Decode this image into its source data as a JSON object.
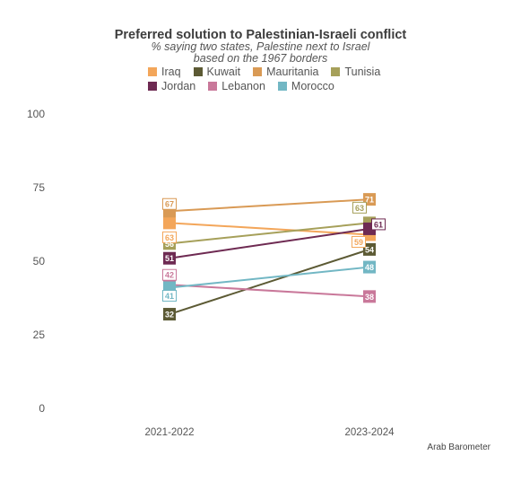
{
  "chart_data": {
    "type": "line",
    "title": "Preferred solution to Palestinian-Israeli conflict",
    "subtitle_lines": [
      "% saying two states, Palestine next to Israel",
      "based on the 1967 borders"
    ],
    "categories": [
      "2021-2022",
      "2023-2024"
    ],
    "ylim": [
      0,
      100
    ],
    "yticks": [
      "0",
      "25",
      "50",
      "75",
      "100"
    ],
    "xlabel": "",
    "ylabel": "",
    "grid": false,
    "legend_position": "top",
    "source": "Arab Barometer",
    "series": [
      {
        "name": "Iraq",
        "color": "#f3a65a",
        "values": [
          63,
          59
        ]
      },
      {
        "name": "Kuwait",
        "color": "#5c5a34",
        "values": [
          32,
          54
        ]
      },
      {
        "name": "Mauritania",
        "color": "#d99a55",
        "values": [
          67,
          71
        ]
      },
      {
        "name": "Tunisia",
        "color": "#a6a05a",
        "values": [
          56,
          63
        ]
      },
      {
        "name": "Jordan",
        "color": "#6e2a52",
        "values": [
          51,
          61
        ]
      },
      {
        "name": "Lebanon",
        "color": "#c9789a",
        "values": [
          42,
          38
        ]
      },
      {
        "name": "Morocco",
        "color": "#72b7c4",
        "values": [
          41,
          48
        ]
      }
    ]
  }
}
